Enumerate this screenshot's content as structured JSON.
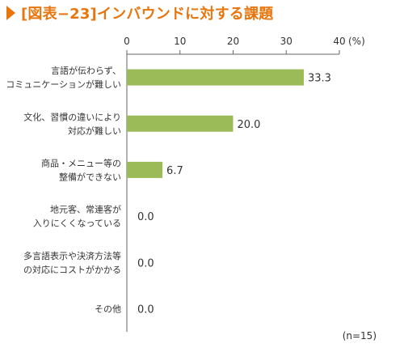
{
  "title": "[図表−23]インバウンドに対する課題",
  "chart_data": {
    "type": "bar",
    "orientation": "horizontal",
    "title": "[図表−23]インバウンドに対する課題",
    "unit": "(%)",
    "xlim": [
      0,
      40
    ],
    "ticks": [
      0,
      10,
      20,
      30,
      40
    ],
    "grid": false,
    "bar_color": "#9bbb59",
    "categories": [
      "言語が伝わらず、\nコミュニケーションが難しい",
      "文化、習慣の違いにより\n対応が難しい",
      "商品・メニュー等の\n整備ができない",
      "地元客、常連客が\n入りにくくなっている",
      "多言語表示や決済方法等\nの対応にコストがかかる",
      "その他"
    ],
    "values": [
      33.3,
      20.0,
      6.7,
      0.0,
      0.0,
      0.0
    ],
    "value_labels": [
      "33.3",
      "20.0",
      "6.7",
      "0.0",
      "0.0",
      "0.0"
    ],
    "note": "(n=15)"
  },
  "colors": {
    "title": "#e8760f",
    "bar": "#9bbb59",
    "axis": "#666666"
  }
}
